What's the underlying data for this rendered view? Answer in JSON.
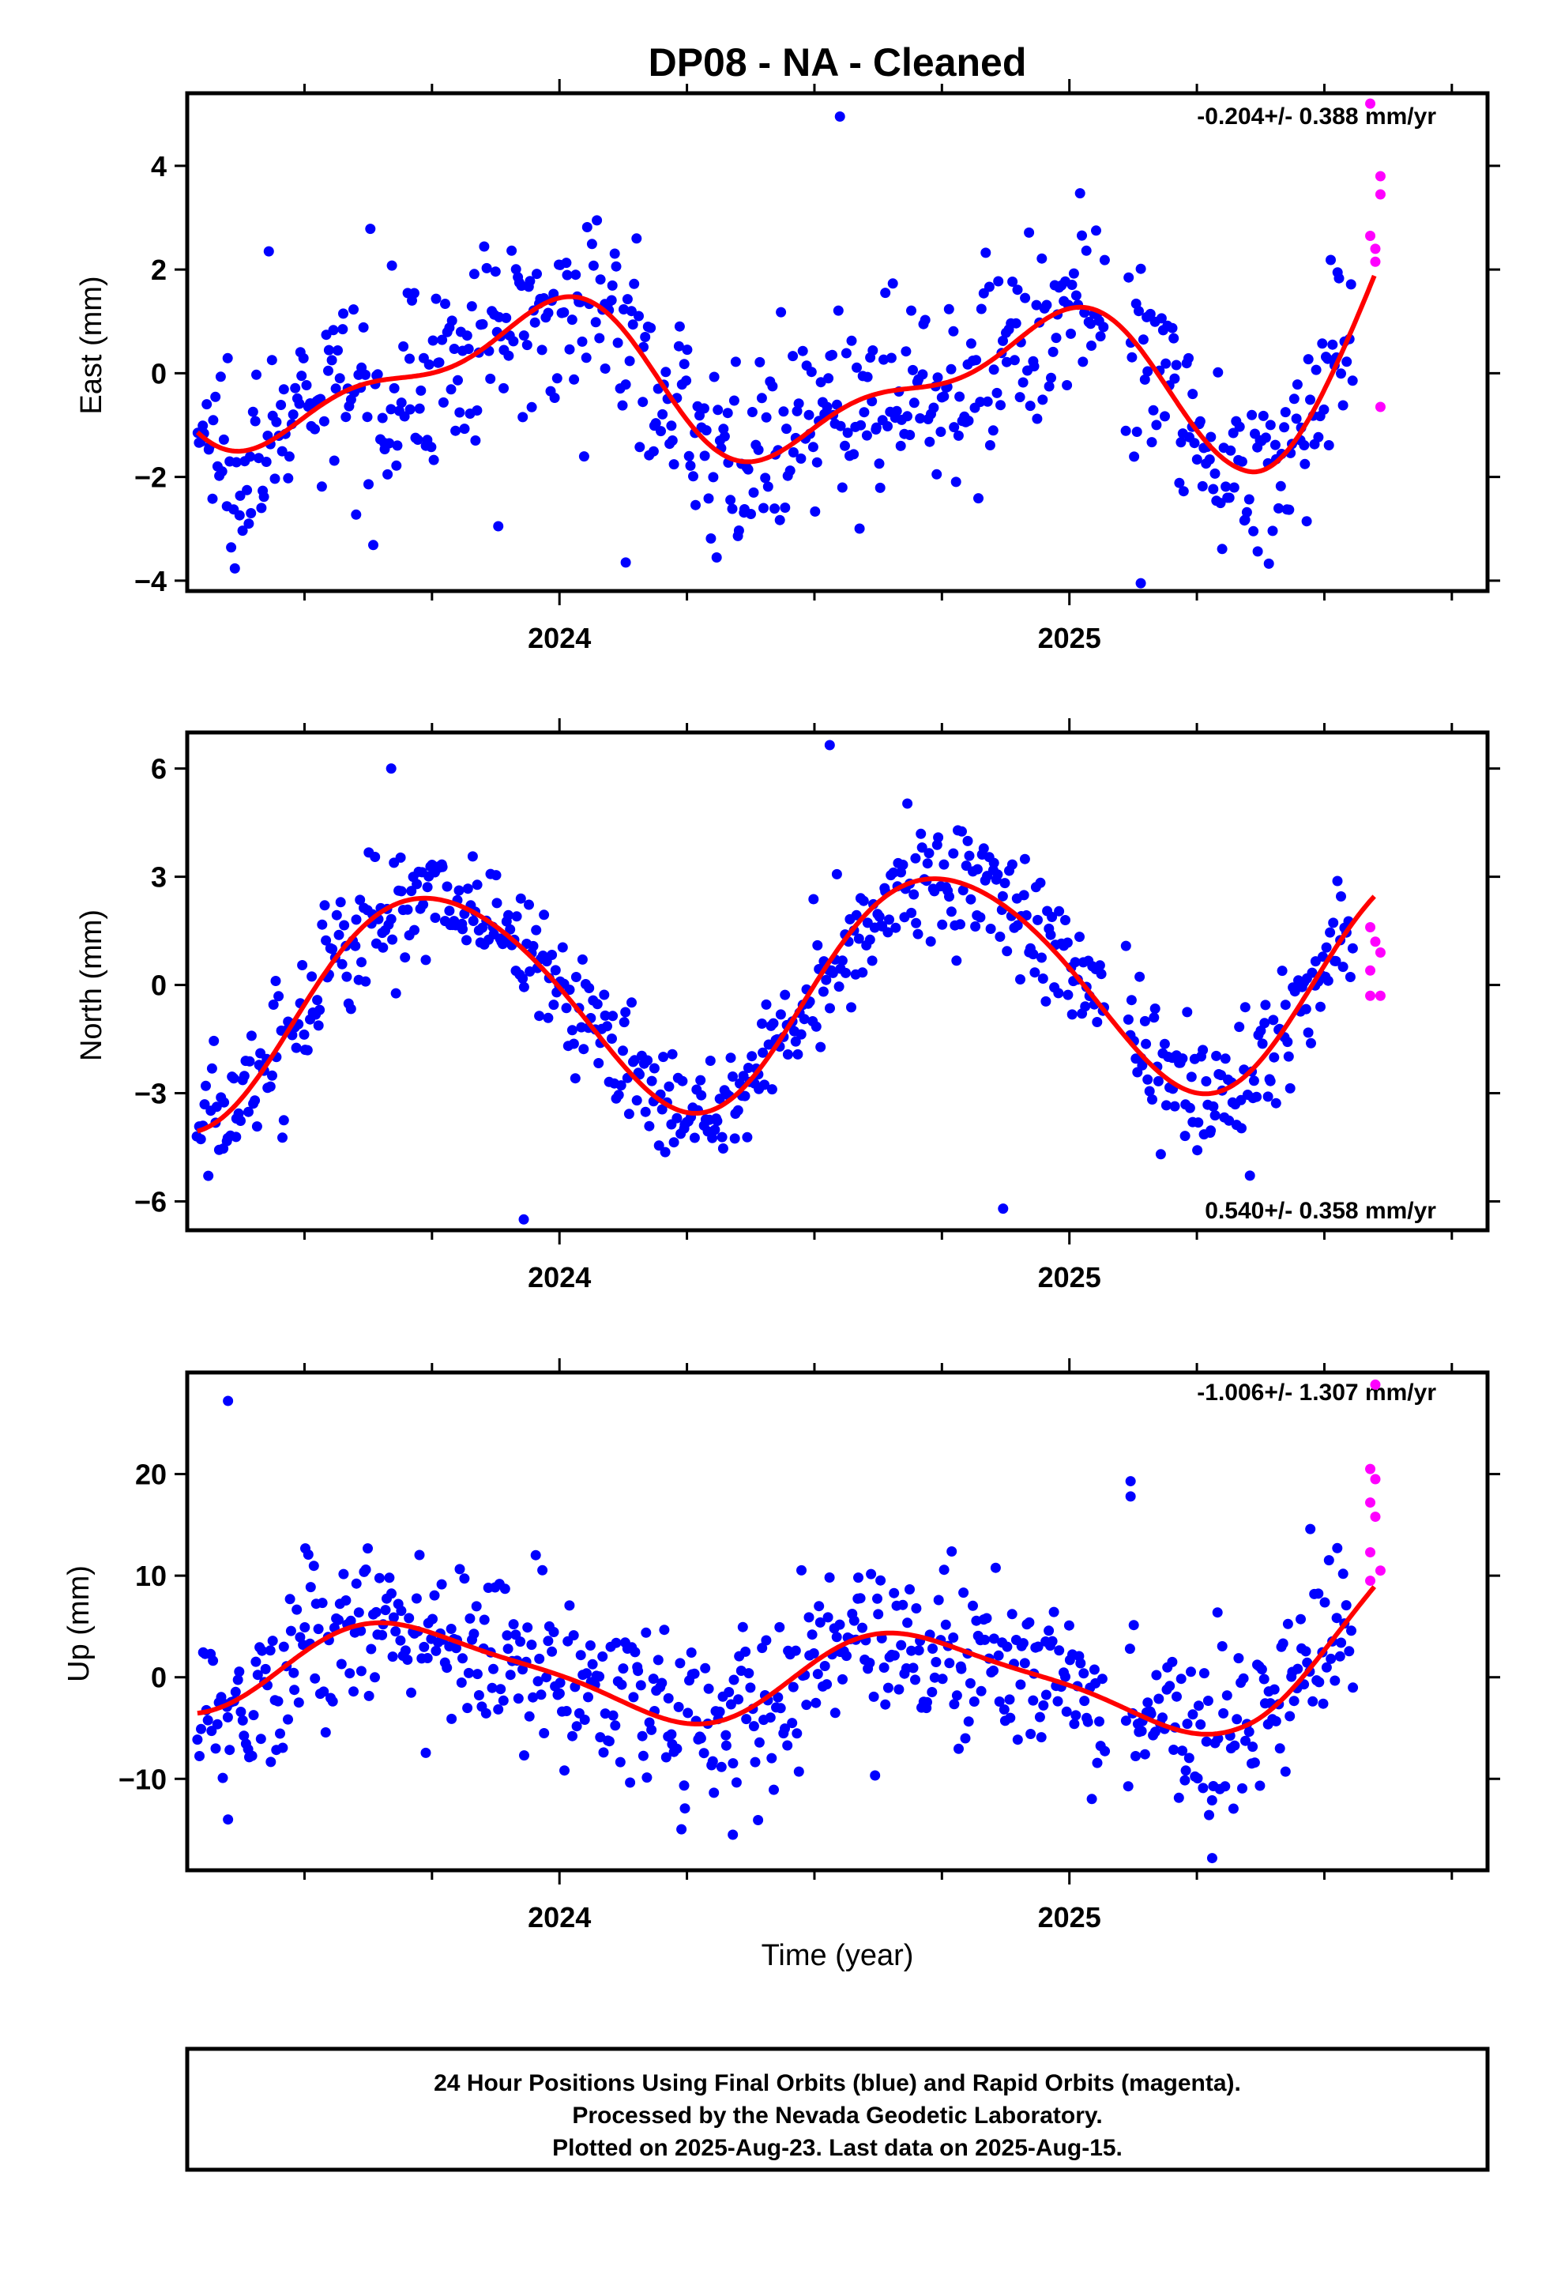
{
  "title": "DP08  - NA - Cleaned",
  "colors": {
    "final": "#0000ff",
    "rapid": "#ff00ff",
    "model": "#ff0000",
    "axis": "#000000"
  },
  "footer": {
    "line1": "24 Hour Positions Using Final Orbits (blue) and Rapid Orbits (magenta).",
    "line2": "Processed by the Nevada Geodetic Laboratory.",
    "line3": "Plotted on 2025-Aug-23. Last data on 2025-Aug-15."
  },
  "chart_data": [
    {
      "type": "scatter",
      "component": "east",
      "ylabel": "East (mm)",
      "xlabel": "",
      "xlim": [
        2023.27,
        2025.82
      ],
      "ylim": [
        -4.2,
        5.4
      ],
      "yticks": [
        -4,
        -2,
        0,
        2,
        4
      ],
      "xtick_labels": [
        {
          "value": 2024,
          "label": "2024"
        },
        {
          "value": 2025,
          "label": "2025"
        }
      ],
      "rate_label": "-0.204+/- 0.388 mm/yr",
      "rate_position": "top-right",
      "model": {
        "offset": -0.2,
        "trend": -0.204,
        "t0": 2024.5,
        "annual": [
          0.4,
          -1.2,
          -0.2
        ],
        "semiannual": [
          0.4,
          0.35,
          1.0
        ],
        "tail_rise": 2.6
      },
      "final_noise": 0.9,
      "final_count": 640,
      "outliers": [
        {
          "x": 2023.43,
          "y": 2.35
        },
        {
          "x": 2023.88,
          "y": -2.95
        },
        {
          "x": 2024.55,
          "y": 4.95
        },
        {
          "x": 2025.14,
          "y": -4.05
        },
        {
          "x": 2024.13,
          "y": -3.65
        }
      ],
      "rapid": [
        {
          "x": 2025.59,
          "y": 5.2
        },
        {
          "x": 2025.61,
          "y": 3.8
        },
        {
          "x": 2025.61,
          "y": 3.45
        },
        {
          "x": 2025.59,
          "y": 2.65
        },
        {
          "x": 2025.6,
          "y": 2.4
        },
        {
          "x": 2025.6,
          "y": 2.15
        },
        {
          "x": 2025.61,
          "y": -0.65
        }
      ]
    },
    {
      "type": "scatter",
      "component": "north",
      "ylabel": "North (mm)",
      "xlabel": "",
      "xlim": [
        2023.27,
        2025.82
      ],
      "ylim": [
        -6.8,
        7.0
      ],
      "yticks": [
        -6,
        -3,
        0,
        3,
        6
      ],
      "xtick_labels": [
        {
          "value": 2024,
          "label": "2024"
        },
        {
          "value": 2025,
          "label": "2025"
        }
      ],
      "rate_label": "0.540+/- 0.358 mm/yr",
      "rate_position": "bottom-right",
      "model": {
        "offset": -0.1,
        "trend": 0.54,
        "t0": 2024.5,
        "annual": [
          3.1,
          -0.1,
          -0.1
        ],
        "semiannual": [
          0.2,
          0.2,
          0.5
        ],
        "tail_rise": 0.0
      },
      "final_noise": 0.9,
      "final_count": 640,
      "outliers": [
        {
          "x": 2023.67,
          "y": 6.0
        },
        {
          "x": 2024.53,
          "y": 6.65
        },
        {
          "x": 2023.93,
          "y": -6.5
        },
        {
          "x": 2024.87,
          "y": -6.2
        }
      ],
      "rapid": [
        {
          "x": 2025.59,
          "y": 1.6
        },
        {
          "x": 2025.6,
          "y": 1.2
        },
        {
          "x": 2025.61,
          "y": 0.9
        },
        {
          "x": 2025.59,
          "y": 0.4
        },
        {
          "x": 2025.59,
          "y": -0.3
        },
        {
          "x": 2025.61,
          "y": -0.3
        }
      ]
    },
    {
      "type": "scatter",
      "component": "up",
      "ylabel": "Up (mm)",
      "xlabel": "Time (year)",
      "xlim": [
        2023.27,
        2025.82
      ],
      "ylim": [
        -19,
        30
      ],
      "yticks": [
        -10,
        0,
        10,
        20
      ],
      "xtick_labels": [
        {
          "value": 2024,
          "label": "2024"
        },
        {
          "value": 2025,
          "label": "2025"
        }
      ],
      "rate_label": "-1.006+/- 1.307 mm/yr",
      "rate_position": "top-right",
      "model": {
        "offset": 0.0,
        "trend": -1.006,
        "t0": 2024.5,
        "annual": [
          4.2,
          0.9,
          0.2
        ],
        "semiannual": [
          0.8,
          0.6,
          0.5
        ],
        "tail_rise": 6.0
      },
      "final_noise": 4.2,
      "final_count": 640,
      "outliers": [
        {
          "x": 2023.35,
          "y": 27.2
        },
        {
          "x": 2025.12,
          "y": 19.3
        },
        {
          "x": 2025.12,
          "y": 17.8
        },
        {
          "x": 2024.34,
          "y": -15.5
        },
        {
          "x": 2025.28,
          "y": -17.8
        },
        {
          "x": 2023.35,
          "y": -14.0
        }
      ],
      "rapid": [
        {
          "x": 2025.6,
          "y": 28.8
        },
        {
          "x": 2025.59,
          "y": 20.5
        },
        {
          "x": 2025.6,
          "y": 19.5
        },
        {
          "x": 2025.59,
          "y": 17.2
        },
        {
          "x": 2025.6,
          "y": 15.8
        },
        {
          "x": 2025.59,
          "y": 12.3
        },
        {
          "x": 2025.61,
          "y": 10.5
        },
        {
          "x": 2025.59,
          "y": 9.5
        }
      ]
    }
  ]
}
